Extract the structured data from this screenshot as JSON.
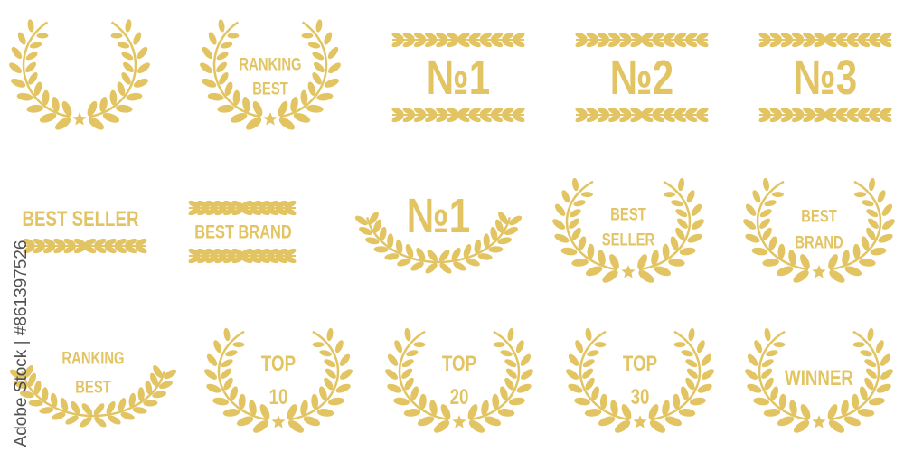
{
  "color": "#E2C463",
  "watermark": "Adobe Stock | #861397526",
  "badges": [
    {
      "style": "wreath-star",
      "lines": []
    },
    {
      "style": "wreath-star",
      "lines": [
        "RANKING",
        "BEST"
      ]
    },
    {
      "style": "double-branch",
      "lines": [
        "№1"
      ]
    },
    {
      "style": "double-branch",
      "lines": [
        "№2"
      ]
    },
    {
      "style": "double-branch",
      "lines": [
        "№3"
      ]
    },
    {
      "style": "branch-below",
      "lines": [
        "BEST SELLER"
      ]
    },
    {
      "style": "double-branch",
      "lines": [
        "BEST BRAND"
      ]
    },
    {
      "style": "arch",
      "lines": [
        "№1"
      ]
    },
    {
      "style": "wreath-star",
      "lines": [
        "BEST",
        "SELLER"
      ]
    },
    {
      "style": "wreath-star",
      "lines": [
        "BEST",
        "BRAND"
      ]
    },
    {
      "style": "arch",
      "lines": [
        "RANKING",
        "BEST"
      ]
    },
    {
      "style": "wreath-star",
      "lines": [
        "TOP",
        "10"
      ]
    },
    {
      "style": "wreath-star",
      "lines": [
        "TOP",
        "20"
      ]
    },
    {
      "style": "wreath-star",
      "lines": [
        "TOP",
        "30"
      ]
    },
    {
      "style": "wreath-star",
      "lines": [
        "WINNER"
      ]
    }
  ]
}
